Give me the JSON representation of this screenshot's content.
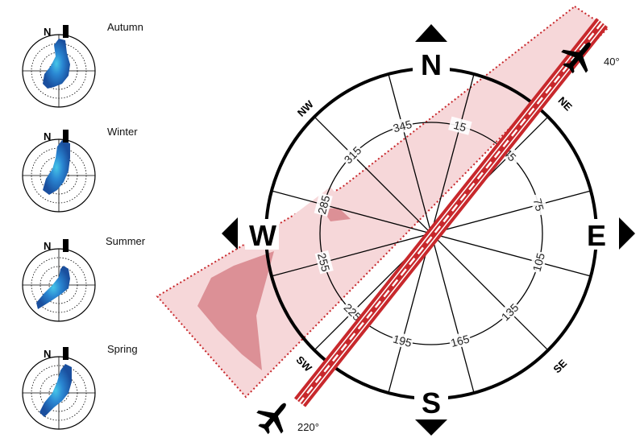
{
  "wind_roses": [
    {
      "season": "Autumn",
      "north": "N"
    },
    {
      "season": "Winter",
      "north": "N"
    },
    {
      "season": "Summer",
      "north": "N"
    },
    {
      "season": "Spring",
      "north": "N"
    }
  ],
  "compass": {
    "cardinals": {
      "north": "N",
      "east": "E",
      "south": "S",
      "west": "W"
    },
    "intercardinals": {
      "ne": "NE",
      "se": "SE",
      "sw": "SW",
      "nw": "NW"
    },
    "bearings": [
      "15",
      "45",
      "75",
      "105",
      "135",
      "165",
      "195",
      "225",
      "255",
      "285",
      "315",
      "345"
    ]
  },
  "runway": {
    "heading_ne": "40°",
    "heading_sw": "220°"
  },
  "colors": {
    "runway": "#c8282c",
    "corridor_fill": "#f6d7d9",
    "hot_zone": "#d9888e",
    "rose_outer": "#1f5fb6",
    "rose_inner": "#46c6e8",
    "ring_stroke": "#000000"
  }
}
